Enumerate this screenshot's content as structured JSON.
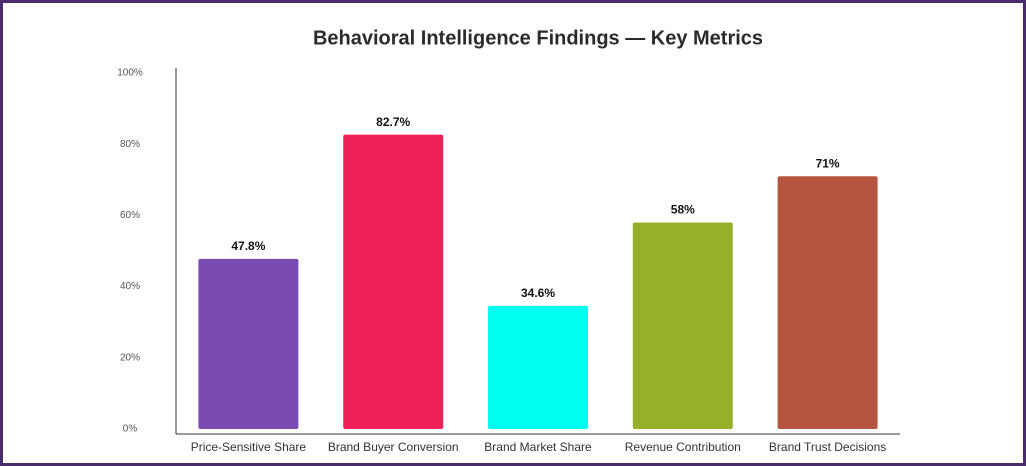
{
  "chart_data": {
    "type": "bar",
    "title": "Behavioral Intelligence Findings — Key Metrics",
    "categories": [
      "Price-Sensitive Share",
      "Brand Buyer Conversion",
      "Brand Market Share",
      "Revenue Contribution",
      "Brand Trust Decisions"
    ],
    "values": [
      47.8,
      82.7,
      34.6,
      58,
      71
    ],
    "value_labels": [
      "47.8%",
      "82.7%",
      "34.6%",
      "58%",
      "71%"
    ],
    "colors": [
      "#7a4bb0",
      "#f02058",
      "#00fff0",
      "#97b02a",
      "#b5553f"
    ],
    "ylim": [
      0,
      100
    ],
    "yticks": [
      {
        "value": 0,
        "label": "0%"
      },
      {
        "value": 20,
        "label": "20%"
      },
      {
        "value": 40,
        "label": "40%"
      },
      {
        "value": 60,
        "label": "60%"
      },
      {
        "value": 80,
        "label": "80%"
      },
      {
        "value": 100,
        "label": "100%"
      }
    ],
    "grid": false
  }
}
